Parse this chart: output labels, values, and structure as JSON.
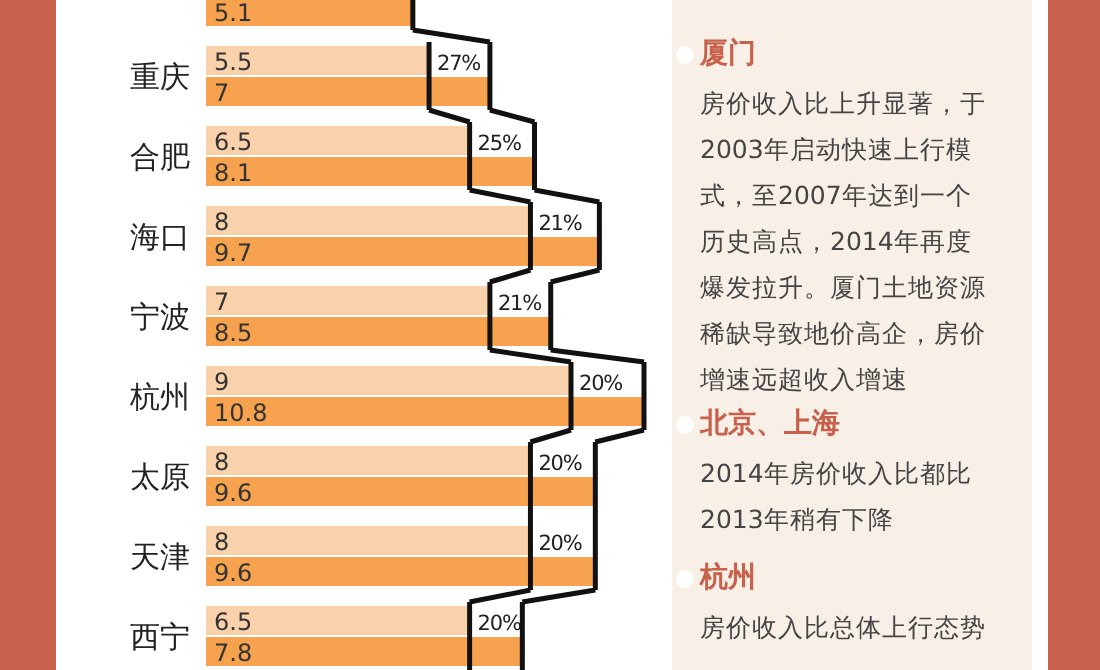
{
  "chart_data": {
    "type": "bar",
    "orientation": "horizontal",
    "data_labels": true,
    "categories": [
      null,
      "重庆",
      "合肥",
      "海口",
      "宁波",
      "杭州",
      "太原",
      "天津",
      "西宁"
    ],
    "series": [
      {
        "color": "#f9d2ab",
        "values": [
          null,
          5.5,
          6.5,
          8,
          7,
          9,
          8,
          8,
          6.5
        ]
      },
      {
        "color": "#f6a24f",
        "values": [
          5.1,
          7,
          8.1,
          9.7,
          8.5,
          10.8,
          9.6,
          9.6,
          7.8
        ]
      }
    ],
    "annotations": [
      {
        "text": "27%",
        "x": 5.5,
        "y": "重庆"
      },
      {
        "text": "25%",
        "x": 6.5,
        "y": "合肥"
      },
      {
        "text": "21%",
        "x": 8,
        "y": "海口"
      },
      {
        "text": "21%",
        "x": 7,
        "y": "宁波"
      },
      {
        "text": "20%",
        "x": 9,
        "y": "杭州"
      },
      {
        "text": "20%",
        "x": 8,
        "y": "太原"
      },
      {
        "text": "20%",
        "x": 8,
        "y": "天津"
      },
      {
        "text": "20%",
        "x": 6.5,
        "y": "西宁"
      },
      "厦门",
      "房价收入比上升显著，于2003年启动快速上行模式，至2007年达到一个历史高点，2014年再度爆发拉升。厦门土地资源稀缺导致地价高企，房价增速远超收入增速",
      "北京、上海",
      "2014年房价收入比都比2013年稍有下降",
      "杭州",
      "房价收入比总体上行态势"
    ]
  }
}
